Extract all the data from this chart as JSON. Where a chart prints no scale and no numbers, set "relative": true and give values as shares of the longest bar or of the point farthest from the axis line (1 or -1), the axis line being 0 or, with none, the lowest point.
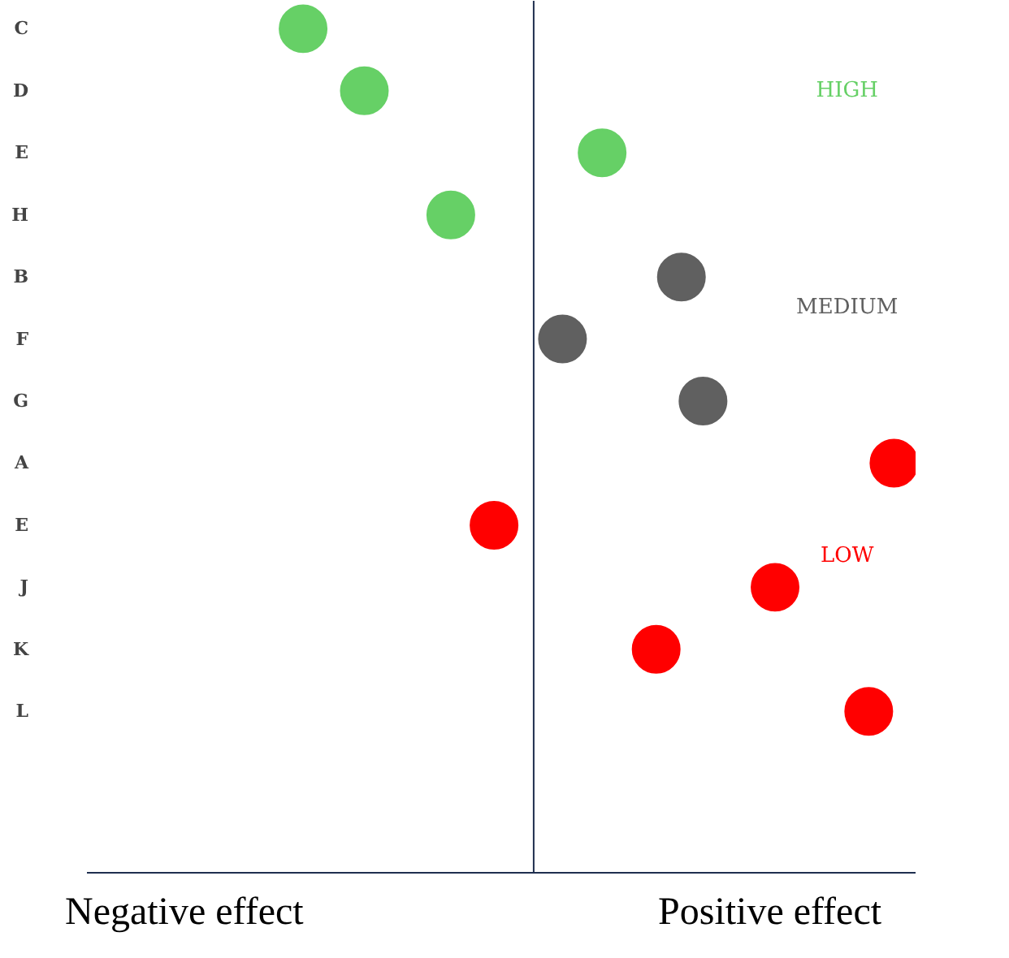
{
  "chart_data": {
    "type": "scatter",
    "orientation": "horizontal",
    "relative": true,
    "marker": "circle",
    "grid": false,
    "categories": [
      "C",
      "D",
      "E",
      "H",
      "B",
      "F",
      "G",
      "A",
      "E",
      "J",
      "K",
      "L"
    ],
    "series": [
      {
        "name": "HIGH",
        "color": "#66d066",
        "values": [
          -0.64,
          -0.47,
          0.19,
          -0.23,
          null,
          null,
          null,
          null,
          null,
          null,
          null,
          null
        ]
      },
      {
        "name": "MEDIUM",
        "color": "#606060",
        "values": [
          null,
          null,
          null,
          null,
          0.41,
          0.08,
          0.47,
          null,
          null,
          null,
          null,
          null
        ]
      },
      {
        "name": "LOW",
        "color": "#ff0000",
        "values": [
          null,
          null,
          null,
          null,
          null,
          null,
          null,
          1,
          -0.11,
          0.67,
          0.34,
          0.93
        ]
      }
    ],
    "annotations": [
      "Negative effect",
      "Positive effect"
    ]
  }
}
